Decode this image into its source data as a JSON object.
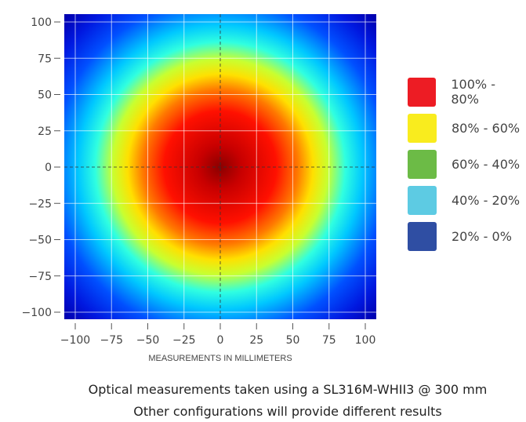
{
  "chart_data": {
    "type": "heatmap",
    "xlabel": "MEASUREMENTS IN MILLIMETERS",
    "ylabel": "",
    "xlim": [
      -107,
      107
    ],
    "ylim": [
      -107,
      105
    ],
    "x_ticks": [
      "−100",
      "−75",
      "−50",
      "−25",
      "0",
      "25",
      "50",
      "75",
      "100"
    ],
    "y_ticks": [
      "100",
      "75",
      "50",
      "25",
      "0",
      "−25",
      "−50",
      "−75",
      "−100"
    ],
    "x_tick_values": [
      -100,
      -75,
      -50,
      -25,
      0,
      25,
      50,
      75,
      100
    ],
    "y_tick_values": [
      100,
      75,
      50,
      25,
      0,
      -25,
      -50,
      -75,
      -100
    ],
    "grid": true,
    "center": [
      0,
      0
    ],
    "radial_profile": {
      "distance_mm": [
        0,
        25,
        50,
        65,
        85,
        100,
        140
      ],
      "intensity_pct": [
        100,
        92,
        80,
        62,
        38,
        22,
        8
      ]
    },
    "legend_placement": "right",
    "legend": [
      {
        "label": "100% - 80%",
        "color": "#ed1c24"
      },
      {
        "label": "80% - 60%",
        "color": "#f9ec1e"
      },
      {
        "label": "60% - 40%",
        "color": "#6cbb46"
      },
      {
        "label": "40% - 20%",
        "color": "#5dcbe3"
      },
      {
        "label": "20% - 0%",
        "color": "#2f4ea3"
      }
    ]
  },
  "caption": {
    "line1": "Optical measurements taken using a SL316M-WHII3 @ 300 mm",
    "line2": "Other configurations will provide different results"
  }
}
